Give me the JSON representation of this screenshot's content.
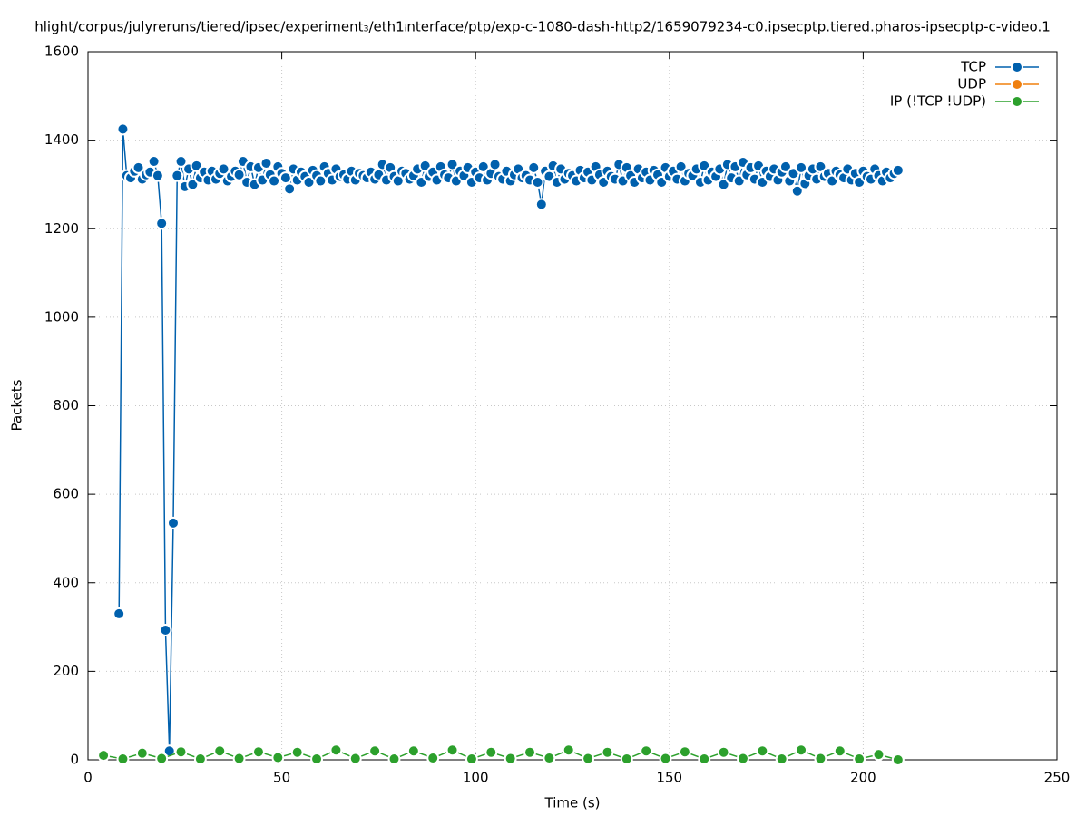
{
  "chart_data": {
    "type": "line",
    "title": "hlight/corpus/julyreruns/tiered/ipsec/experiment₃/eth1ᵢnterface/ptp/exp-c-1080-dash-http2/1659079234-c0.ipsecptp.tiered.pharos-ipsecptp-c-video.1",
    "x_label": "Time (s)",
    "y_label": "Packets",
    "xlim": [
      0,
      250
    ],
    "xticks": [
      0,
      50,
      100,
      150,
      200,
      250
    ],
    "ylim": [
      0,
      1600
    ],
    "yticks": [
      0,
      200,
      400,
      600,
      800,
      1000,
      1200,
      1400,
      1600
    ],
    "grid": true,
    "legend": "top-right",
    "series": [
      {
        "name": "TCP",
        "color": "#0060ad",
        "x": [
          8,
          9,
          10,
          11,
          12,
          13,
          14,
          15,
          16,
          17,
          18,
          19,
          20,
          21,
          22,
          23,
          24,
          25,
          26,
          27,
          28,
          29,
          30,
          31,
          32,
          33,
          34,
          35,
          36,
          37,
          38,
          39,
          40,
          41,
          42,
          43,
          44,
          45,
          46,
          47,
          48,
          49,
          50,
          51,
          52,
          53,
          54,
          55,
          56,
          57,
          58,
          59,
          60,
          61,
          62,
          63,
          64,
          65,
          66,
          67,
          68,
          69,
          70,
          71,
          72,
          73,
          74,
          75,
          76,
          77,
          78,
          79,
          80,
          81,
          82,
          83,
          84,
          85,
          86,
          87,
          88,
          89,
          90,
          91,
          92,
          93,
          94,
          95,
          96,
          97,
          98,
          99,
          100,
          101,
          102,
          103,
          104,
          105,
          106,
          107,
          108,
          109,
          110,
          111,
          112,
          113,
          114,
          115,
          116,
          117,
          118,
          119,
          120,
          121,
          122,
          123,
          124,
          125,
          126,
          127,
          128,
          129,
          130,
          131,
          132,
          133,
          134,
          135,
          136,
          137,
          138,
          139,
          140,
          141,
          142,
          143,
          144,
          145,
          146,
          147,
          148,
          149,
          150,
          151,
          152,
          153,
          154,
          155,
          156,
          157,
          158,
          159,
          160,
          161,
          162,
          163,
          164,
          165,
          166,
          167,
          168,
          169,
          170,
          171,
          172,
          173,
          174,
          175,
          176,
          177,
          178,
          179,
          180,
          181,
          182,
          183,
          184,
          185,
          186,
          187,
          188,
          189,
          190,
          191,
          192,
          193,
          194,
          195,
          196,
          197,
          198,
          199,
          200,
          201,
          202,
          203,
          204,
          205,
          206,
          207,
          208,
          209
        ],
        "values": [
          330,
          1425,
          1320,
          1315,
          1330,
          1338,
          1312,
          1322,
          1328,
          1352,
          1320,
          1212,
          293,
          20,
          535,
          1320,
          1352,
          1295,
          1335,
          1300,
          1342,
          1315,
          1328,
          1310,
          1330,
          1312,
          1325,
          1335,
          1308,
          1318,
          1330,
          1322,
          1352,
          1305,
          1340,
          1300,
          1338,
          1310,
          1348,
          1322,
          1308,
          1340,
          1325,
          1315,
          1290,
          1335,
          1310,
          1328,
          1318,
          1305,
          1332,
          1320,
          1308,
          1340,
          1325,
          1310,
          1335,
          1318,
          1322,
          1312,
          1330,
          1310,
          1325,
          1320,
          1315,
          1328,
          1312,
          1322,
          1345,
          1310,
          1338,
          1318,
          1308,
          1330,
          1325,
          1312,
          1320,
          1335,
          1305,
          1342,
          1318,
          1328,
          1310,
          1340,
          1322,
          1315,
          1345,
          1308,
          1330,
          1320,
          1338,
          1305,
          1328,
          1315,
          1340,
          1310,
          1325,
          1345,
          1318,
          1312,
          1330,
          1308,
          1322,
          1335,
          1315,
          1320,
          1310,
          1338,
          1305,
          1255,
          1330,
          1318,
          1342,
          1305,
          1335,
          1312,
          1325,
          1320,
          1308,
          1332,
          1315,
          1328,
          1310,
          1340,
          1322,
          1305,
          1330,
          1318,
          1312,
          1345,
          1308,
          1338,
          1320,
          1305,
          1335,
          1315,
          1328,
          1310,
          1332,
          1322,
          1305,
          1338,
          1318,
          1330,
          1312,
          1340,
          1308,
          1325,
          1320,
          1335,
          1305,
          1342,
          1310,
          1328,
          1318,
          1335,
          1300,
          1345,
          1315,
          1340,
          1308,
          1350,
          1322,
          1338,
          1312,
          1342,
          1305,
          1330,
          1318,
          1335,
          1310,
          1328,
          1340,
          1308,
          1325,
          1285,
          1338,
          1302,
          1320,
          1335,
          1312,
          1340,
          1318,
          1325,
          1308,
          1330,
          1322,
          1315,
          1335,
          1310,
          1325,
          1305,
          1330,
          1318,
          1312,
          1335,
          1320,
          1308,
          1328,
          1315,
          1325,
          1332
        ]
      },
      {
        "name": "UDP",
        "color": "#f0800f",
        "x": [],
        "values": []
      },
      {
        "name": "IP (!TCP  !UDP)",
        "color": "#2ca02c",
        "x": [
          4,
          9,
          14,
          19,
          24,
          29,
          34,
          39,
          44,
          49,
          54,
          59,
          64,
          69,
          74,
          79,
          84,
          89,
          94,
          99,
          104,
          109,
          114,
          119,
          124,
          129,
          134,
          139,
          144,
          149,
          154,
          159,
          164,
          169,
          174,
          179,
          184,
          189,
          194,
          199,
          204,
          209
        ],
        "values": [
          10,
          2,
          15,
          3,
          18,
          2,
          20,
          3,
          18,
          5,
          17,
          2,
          22,
          3,
          20,
          2,
          20,
          4,
          22,
          2,
          17,
          3,
          17,
          4,
          22,
          3,
          17,
          2,
          20,
          3,
          18,
          2,
          17,
          3,
          20,
          2,
          22,
          3,
          20,
          2,
          12,
          0
        ]
      }
    ]
  }
}
